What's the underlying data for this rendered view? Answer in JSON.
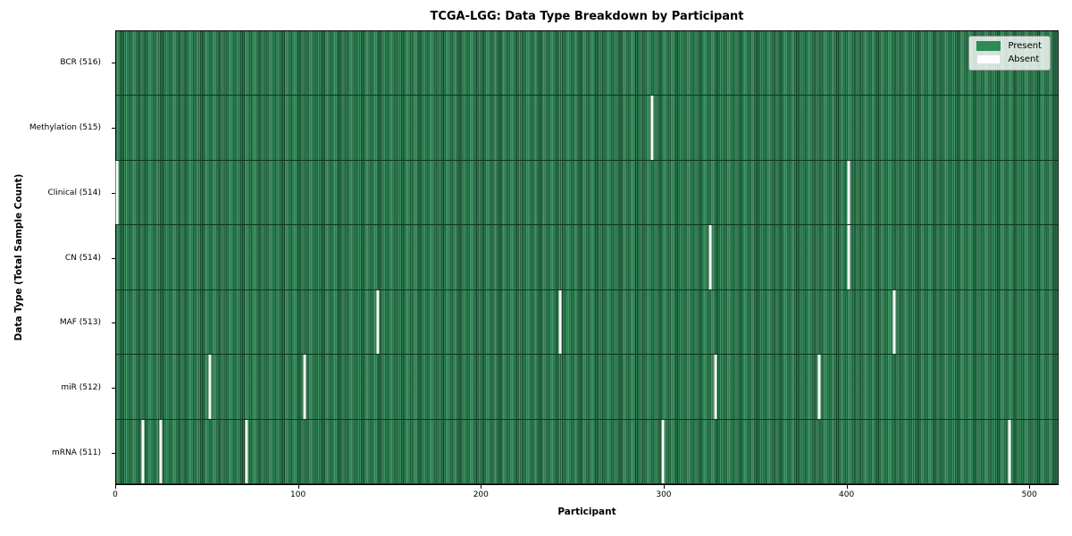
{
  "chart_data": {
    "type": "heatmap",
    "title": "TCGA-LGG: Data Type Breakdown by Participant",
    "xlabel": "Participant",
    "ylabel": "Data Type (Total Sample Count)",
    "x_ticks": [
      0,
      100,
      200,
      300,
      400,
      500
    ],
    "xlim": [
      0,
      516
    ],
    "n_participants": 516,
    "grid": false,
    "legend": [
      "Present",
      "Absent"
    ],
    "legend_position": "upper right",
    "colors": {
      "present": "#2e8b57",
      "absent": "#ffffff",
      "bar_edge": "#16482b",
      "axes_border": "#000000"
    },
    "rows": [
      {
        "label": "BCR (516)",
        "present_count": 516,
        "absent_participants": []
      },
      {
        "label": "Methylation (515)",
        "present_count": 515,
        "absent_participants": [
          293
        ]
      },
      {
        "label": "Clinical (514)",
        "present_count": 514,
        "absent_participants": [
          0,
          401
        ]
      },
      {
        "label": "CN (514)",
        "present_count": 514,
        "absent_participants": [
          325,
          401
        ]
      },
      {
        "label": "MAF (513)",
        "present_count": 513,
        "absent_participants": [
          143,
          243,
          426
        ]
      },
      {
        "label": "miR (512)",
        "present_count": 512,
        "absent_participants": [
          51,
          103,
          328,
          385
        ]
      },
      {
        "label": "mRNA (511)",
        "present_count": 511,
        "absent_participants": [
          14,
          24,
          71,
          299,
          489
        ]
      }
    ]
  }
}
